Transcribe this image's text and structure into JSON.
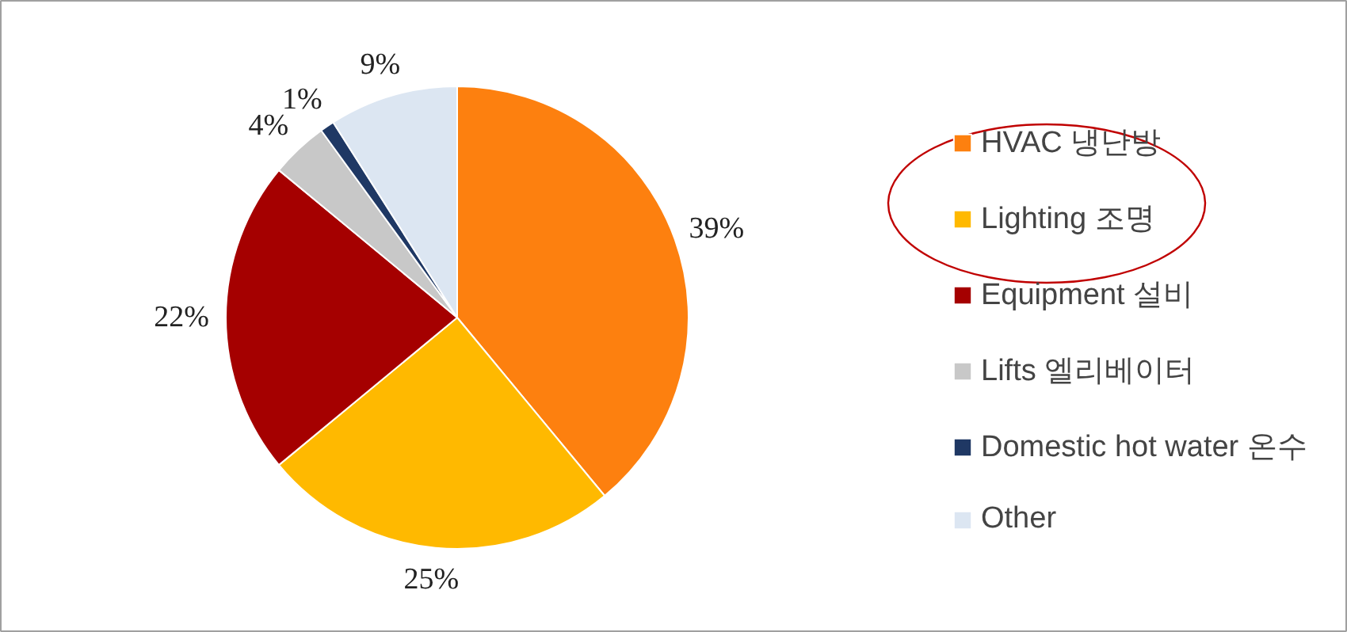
{
  "chart_data": {
    "type": "pie",
    "categories": [
      "HVAC 냉난방",
      "Lighting 조명",
      "Equipment 설비",
      "Lifts 엘리베이터",
      "Domestic hot water 온수",
      "Other"
    ],
    "values": [
      39,
      25,
      22,
      4,
      1,
      9
    ],
    "colors": [
      "#fd800f",
      "#ffb900",
      "#a50000",
      "#c8c8c8",
      "#1f3864",
      "#dce6f2"
    ],
    "value_labels": [
      "39%",
      "25%",
      "22%",
      "4%",
      "1%",
      "9%"
    ],
    "legend": "right"
  }
}
